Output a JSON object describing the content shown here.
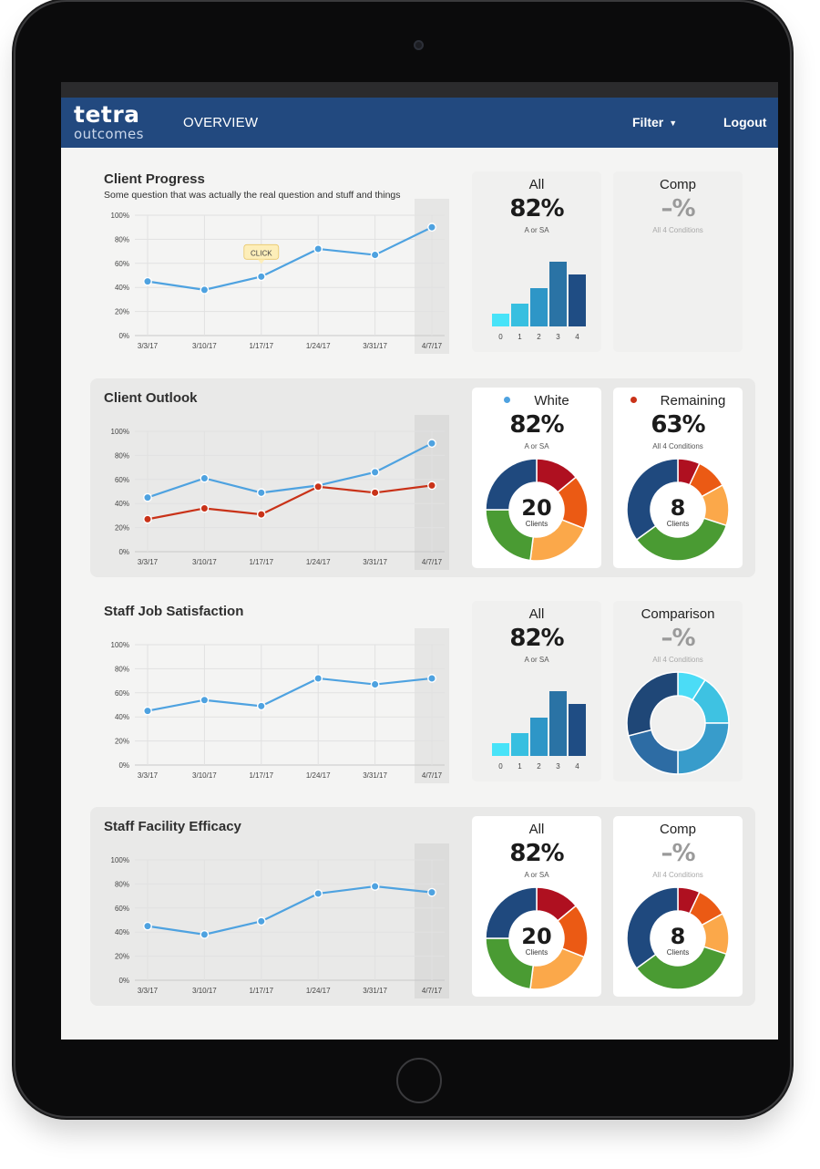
{
  "nav": {
    "logo_top": "tetra",
    "logo_bottom": "outcomes",
    "overview_label": "OVERVIEW",
    "filter_label": "Filter",
    "logout_label": "Logout",
    "accent": "#22497f"
  },
  "colors": {
    "line_blue": "#4ea2e0",
    "line_red": "#c93218",
    "bar_shades": [
      "#48e3f8",
      "#37bfe0",
      "#2e96c7",
      "#2a73a5",
      "#1f4d84"
    ],
    "donut_status": [
      "#af1020",
      "#eb5a14",
      "#fba84a",
      "#4a9b33",
      "#1f497e"
    ],
    "donut_blues": [
      "#4bdcf6",
      "#3ec2e2",
      "#389ccb",
      "#2d6ca4",
      "#1f4777"
    ]
  },
  "dashboard": {
    "sections": [
      {
        "title": "Client Progress",
        "subtitle": "Some question that was actually the real question and stuff and things",
        "shaded": false,
        "tooltip": "CLICK",
        "chart_data": {
          "type": "line",
          "categories": [
            "3/3/17",
            "3/10/17",
            "1/17/17",
            "1/24/17",
            "3/31/17",
            "4/7/17"
          ],
          "y_ticks": [
            "100%",
            "80%",
            "60%",
            "40%",
            "20%",
            "0%"
          ],
          "ylim": [
            0,
            100
          ],
          "highlight_last": true,
          "series": [
            {
              "color_key": "line_blue",
              "values": [
                45,
                38,
                49,
                72,
                67,
                90
              ]
            }
          ]
        },
        "cards": [
          {
            "label": "All",
            "value": "82%",
            "caption": "A or SA",
            "muted": true,
            "chart_data": {
              "type": "bar",
              "categories": [
                "0",
                "1",
                "2",
                "3",
                "4"
              ],
              "values": [
                14,
                25,
                42,
                71,
                57
              ],
              "ylim": [
                0,
                100
              ]
            }
          },
          {
            "label": "Comp",
            "value": "–%",
            "caption": "All 4 Conditions",
            "muted": true,
            "grey": true
          }
        ]
      },
      {
        "title": "Client Outlook",
        "subtitle": "",
        "shaded": true,
        "chart_data": {
          "type": "line",
          "categories": [
            "3/3/17",
            "3/10/17",
            "1/17/17",
            "1/24/17",
            "3/31/17",
            "4/7/17"
          ],
          "y_ticks": [
            "100%",
            "80%",
            "60%",
            "40%",
            "20%",
            "0%"
          ],
          "ylim": [
            0,
            100
          ],
          "highlight_last": true,
          "series": [
            {
              "color_key": "line_blue",
              "values": [
                45,
                61,
                49,
                55,
                66,
                90
              ]
            },
            {
              "color_key": "line_red",
              "values": [
                27,
                36,
                31,
                54,
                49,
                55
              ]
            }
          ]
        },
        "cards": [
          {
            "label": "White",
            "value": "82%",
            "caption": "A or SA",
            "dot_color": "#4ea2e0",
            "chart_data": {
              "type": "pie",
              "palette": "donut_status",
              "values": [
                14,
                17,
                21,
                23,
                25
              ],
              "center_value": "20",
              "center_caption": "Clients"
            }
          },
          {
            "label": "Remaining",
            "value": "63%",
            "caption": "All 4 Conditions",
            "dot_color": "#c93218",
            "chart_data": {
              "type": "pie",
              "palette": "donut_status",
              "values": [
                7,
                10,
                13,
                35,
                35
              ],
              "center_value": "8",
              "center_caption": "Clients"
            }
          }
        ]
      },
      {
        "title": "Staff Job Satisfaction",
        "subtitle": "",
        "shaded": false,
        "chart_data": {
          "type": "line",
          "categories": [
            "3/3/17",
            "3/10/17",
            "1/17/17",
            "1/24/17",
            "3/31/17",
            "4/7/17"
          ],
          "y_ticks": [
            "100%",
            "80%",
            "60%",
            "40%",
            "20%",
            "0%"
          ],
          "ylim": [
            0,
            100
          ],
          "highlight_last": true,
          "series": [
            {
              "color_key": "line_blue",
              "values": [
                45,
                54,
                49,
                72,
                67,
                72
              ]
            }
          ]
        },
        "cards": [
          {
            "label": "All",
            "value": "82%",
            "caption": "A or SA",
            "muted": true,
            "chart_data": {
              "type": "bar",
              "categories": [
                "0",
                "1",
                "2",
                "3",
                "4"
              ],
              "values": [
                14,
                25,
                42,
                71,
                57
              ],
              "ylim": [
                0,
                100
              ]
            }
          },
          {
            "label": "Comparison",
            "value": "–%",
            "caption": "All 4 Conditions",
            "muted": true,
            "grey": true,
            "chart_data": {
              "type": "pie",
              "palette": "donut_blues",
              "values": [
                9,
                16,
                25,
                21,
                29
              ],
              "center_value": "",
              "center_caption": ""
            }
          }
        ]
      },
      {
        "title": "Staff Facility Efficacy",
        "subtitle": "",
        "shaded": true,
        "chart_data": {
          "type": "line",
          "categories": [
            "3/3/17",
            "3/10/17",
            "1/17/17",
            "1/24/17",
            "3/31/17",
            "4/7/17"
          ],
          "y_ticks": [
            "100%",
            "80%",
            "60%",
            "40%",
            "20%",
            "0%"
          ],
          "ylim": [
            0,
            100
          ],
          "highlight_last": true,
          "series": [
            {
              "color_key": "line_blue",
              "values": [
                45,
                38,
                49,
                72,
                78,
                73
              ]
            }
          ]
        },
        "cards": [
          {
            "label": "All",
            "value": "82%",
            "caption": "A or SA",
            "chart_data": {
              "type": "pie",
              "palette": "donut_status",
              "values": [
                14,
                17,
                21,
                23,
                25
              ],
              "center_value": "20",
              "center_caption": "Clients"
            }
          },
          {
            "label": "Comp",
            "value": "–%",
            "caption": "All 4 Conditions",
            "grey": true,
            "chart_data": {
              "type": "pie",
              "palette": "donut_status",
              "values": [
                7,
                10,
                13,
                35,
                35
              ],
              "center_value": "8",
              "center_caption": "Clients"
            }
          }
        ]
      }
    ]
  }
}
